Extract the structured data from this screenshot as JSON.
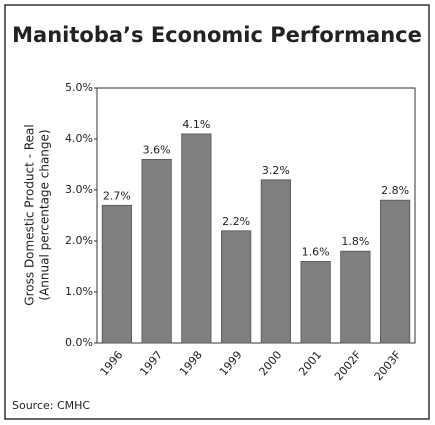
{
  "chart_data": {
    "type": "bar",
    "title": "Manitoba’s Economic Performance",
    "y_label": [
      "Gross Domestic Product - Real",
      "(Annual percentage change)"
    ],
    "categories": [
      "1996",
      "1997",
      "1998",
      "1999",
      "2000",
      "2001",
      "2002F",
      "2003F"
    ],
    "values": [
      2.7,
      3.6,
      4.1,
      2.2,
      3.2,
      1.6,
      1.8,
      2.8
    ],
    "value_labels": [
      "2.7%",
      "3.6%",
      "4.1%",
      "2.2%",
      "3.2%",
      "1.6%",
      "1.8%",
      "2.8%"
    ],
    "color": "#7f7f7f",
    "ylim": [
      0,
      5
    ],
    "yticks": [
      {
        "value": 0,
        "label": "0.0%"
      },
      {
        "value": 1,
        "label": "1.0%"
      },
      {
        "value": 2,
        "label": "2.0%"
      },
      {
        "value": 3,
        "label": "3.0%"
      },
      {
        "value": 4,
        "label": "4.0%"
      },
      {
        "value": 5,
        "label": "5.0%"
      }
    ],
    "source": "Source: CMHC"
  }
}
